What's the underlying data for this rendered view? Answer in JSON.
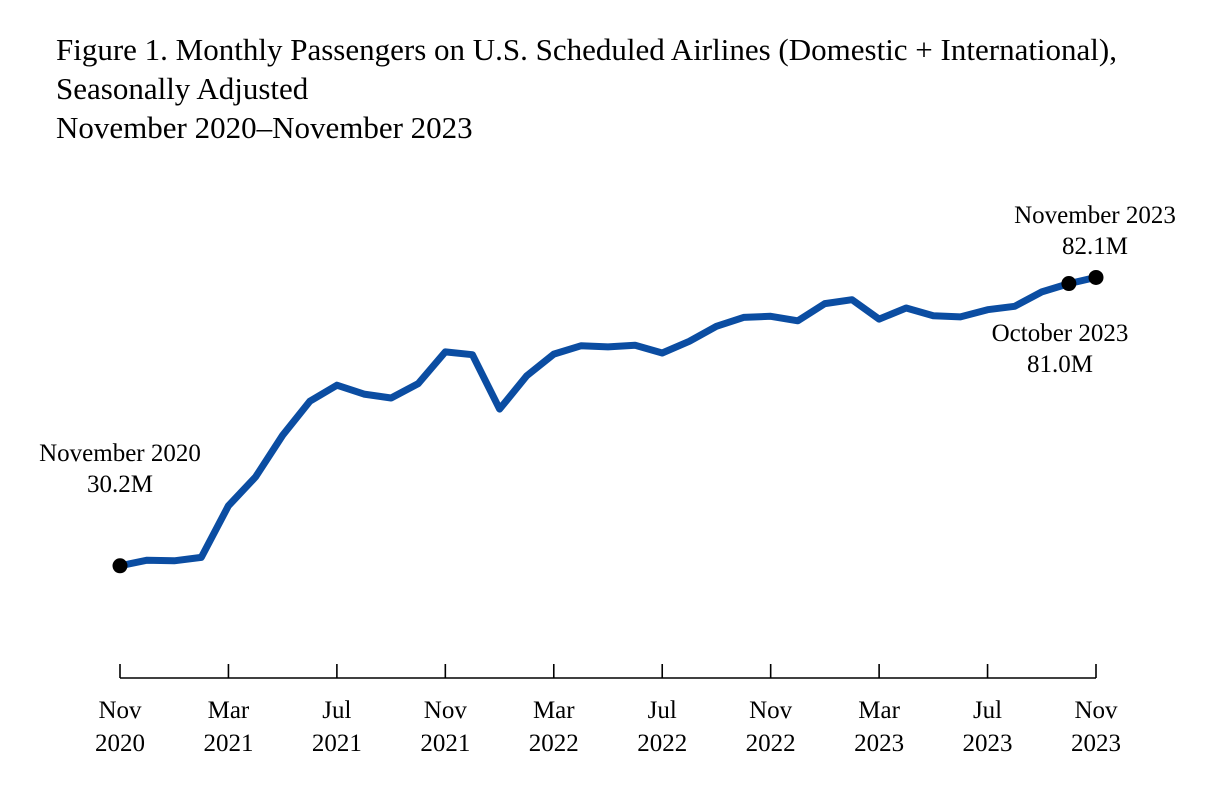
{
  "chart_data": {
    "type": "line",
    "title": "Figure 1. Monthly Passengers on U.S. Scheduled Airlines (Domestic + International),",
    "title_line2": "Seasonally Adjusted",
    "subtitle": "November 2020–November 2023",
    "xlabel": "",
    "ylabel": "",
    "ylim": [
      10,
      100
    ],
    "grid": false,
    "series": [
      {
        "name": "Passengers (millions)",
        "color": "#0b4da2",
        "x": [
          "Nov 2020",
          "Dec 2020",
          "Jan 2021",
          "Feb 2021",
          "Mar 2021",
          "Apr 2021",
          "May 2021",
          "Jun 2021",
          "Jul 2021",
          "Aug 2021",
          "Sep 2021",
          "Oct 2021",
          "Nov 2021",
          "Dec 2021",
          "Jan 2022",
          "Feb 2022",
          "Mar 2022",
          "Apr 2022",
          "May 2022",
          "Jun 2022",
          "Jul 2022",
          "Aug 2022",
          "Sep 2022",
          "Oct 2022",
          "Nov 2022",
          "Dec 2022",
          "Jan 2023",
          "Feb 2023",
          "Mar 2023",
          "Apr 2023",
          "May 2023",
          "Jun 2023",
          "Jul 2023",
          "Aug 2023",
          "Sep 2023",
          "Oct 2023",
          "Nov 2023"
        ],
        "values": [
          30.2,
          31.2,
          31.1,
          31.7,
          41.0,
          46.2,
          53.7,
          59.8,
          62.7,
          61.1,
          60.4,
          63.0,
          68.7,
          68.2,
          58.4,
          64.4,
          68.3,
          69.8,
          69.6,
          69.9,
          68.5,
          70.6,
          73.3,
          74.9,
          75.1,
          74.3,
          77.4,
          78.1,
          74.6,
          76.6,
          75.2,
          75.0,
          76.3,
          76.9,
          79.5,
          81.0,
          82.1
        ]
      }
    ],
    "x_ticks": [
      {
        "index": 0,
        "month": "Nov",
        "year": "2020"
      },
      {
        "index": 4,
        "month": "Mar",
        "year": "2021"
      },
      {
        "index": 8,
        "month": "Jul",
        "year": "2021"
      },
      {
        "index": 12,
        "month": "Nov",
        "year": "2021"
      },
      {
        "index": 16,
        "month": "Mar",
        "year": "2022"
      },
      {
        "index": 20,
        "month": "Jul",
        "year": "2022"
      },
      {
        "index": 24,
        "month": "Nov",
        "year": "2022"
      },
      {
        "index": 28,
        "month": "Mar",
        "year": "2023"
      },
      {
        "index": 32,
        "month": "Jul",
        "year": "2023"
      },
      {
        "index": 36,
        "month": "Nov",
        "year": "2023"
      }
    ],
    "annotations": [
      {
        "index": 0,
        "line1": "November 2020",
        "line2": "30.2M"
      },
      {
        "index": 35,
        "line1": "October 2023",
        "line2": "81.0M"
      },
      {
        "index": 36,
        "line1": "November 2023",
        "line2": "82.1M"
      }
    ]
  }
}
